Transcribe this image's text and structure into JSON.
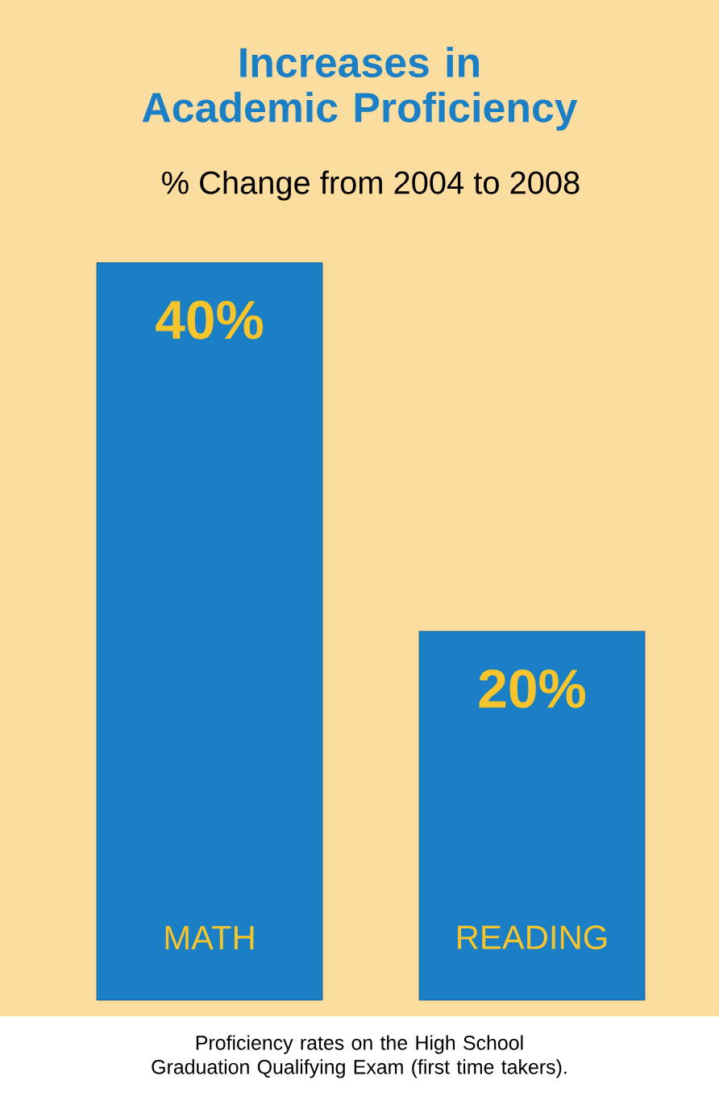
{
  "chart_data": {
    "type": "bar",
    "title": "Increases in Academic Proficiency",
    "subtitle": "% Change from 2004 to 2008",
    "categories": [
      "MATH",
      "READING"
    ],
    "values": [
      40,
      20
    ],
    "color": "#1b7fc6",
    "value_labels": [
      "40%",
      "20%"
    ],
    "annotations": [
      "Proficiency rates on the High School Graduation Qualifying Exam (first time takers)."
    ]
  }
}
